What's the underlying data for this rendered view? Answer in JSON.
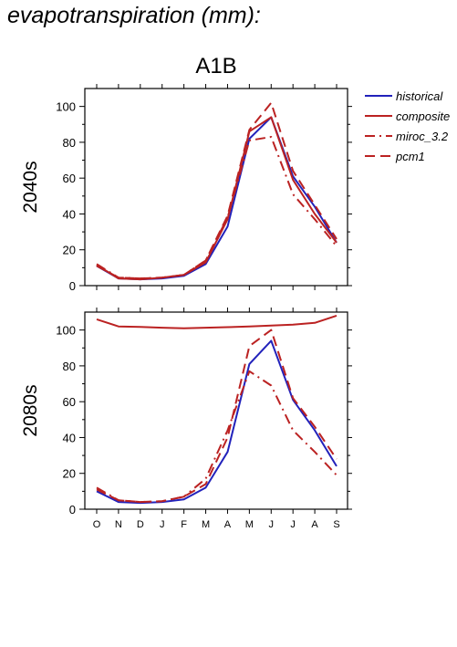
{
  "page": {
    "title": "evapotranspiration (mm):"
  },
  "colors": {
    "historical": "#2222bb",
    "future": "#bb2222"
  },
  "legend": [
    {
      "label": "historical",
      "color": "#2222bb",
      "dash": "solid"
    },
    {
      "label": "composite",
      "color": "#bb2222",
      "dash": "solid"
    },
    {
      "label": "miroc_3.2",
      "color": "#bb2222",
      "dash": "dashdot"
    },
    {
      "label": "pcm1",
      "color": "#bb2222",
      "dash": "dashed"
    }
  ],
  "chart_data": [
    {
      "type": "line",
      "title": "A1B",
      "ylabel": "2040s",
      "xlabel": "",
      "categories": [
        "O",
        "N",
        "D",
        "J",
        "F",
        "M",
        "A",
        "M",
        "J",
        "J",
        "A",
        "S"
      ],
      "ylim": [
        0,
        110
      ],
      "yticks": [
        0,
        20,
        40,
        60,
        80,
        100
      ],
      "grid": false,
      "legend": "top-right",
      "series": [
        {
          "name": "historical",
          "color": "#2222bb",
          "dash": "solid",
          "values": [
            11,
            4,
            3.5,
            4,
            5.5,
            12,
            33,
            82,
            94,
            61,
            44,
            24
          ]
        },
        {
          "name": "composite",
          "color": "#bb2222",
          "dash": "solid",
          "values": [
            11.5,
            4,
            3.5,
            4.5,
            6,
            13,
            37,
            86,
            94,
            59,
            40,
            24
          ]
        },
        {
          "name": "miroc_3.2",
          "color": "#bb2222",
          "dash": "dashdot",
          "values": [
            12,
            4.5,
            4,
            4.5,
            6,
            14,
            38,
            81,
            83,
            51,
            37,
            22
          ]
        },
        {
          "name": "pcm1",
          "color": "#bb2222",
          "dash": "dashed",
          "values": [
            11,
            4.5,
            4,
            4.5,
            6,
            14,
            39,
            87,
            102,
            64,
            45,
            26
          ]
        }
      ]
    },
    {
      "type": "line",
      "title": "",
      "ylabel": "2080s",
      "xlabel": "",
      "categories": [
        "O",
        "N",
        "D",
        "J",
        "F",
        "M",
        "A",
        "M",
        "J",
        "J",
        "A",
        "S"
      ],
      "ylim": [
        0,
        110
      ],
      "yticks": [
        0,
        20,
        40,
        60,
        80,
        100
      ],
      "grid": false,
      "legend": "none",
      "series": [
        {
          "name": "historical",
          "color": "#2222bb",
          "dash": "solid",
          "values": [
            10,
            4,
            3.5,
            4,
            5.5,
            12,
            32,
            81,
            94,
            61,
            44,
            24
          ]
        },
        {
          "name": "composite",
          "color": "#bb2222",
          "dash": "solid",
          "values": [
            106,
            102,
            101.7,
            101.3,
            101,
            101.3,
            101.6,
            102,
            102.5,
            103,
            104,
            108
          ]
        },
        {
          "name": "miroc_3.2",
          "color": "#bb2222",
          "dash": "dashdot",
          "values": [
            12,
            5,
            4,
            4.5,
            7,
            17,
            44,
            77,
            69,
            44,
            32,
            19
          ]
        },
        {
          "name": "pcm1",
          "color": "#bb2222",
          "dash": "dashed",
          "values": [
            11,
            5,
            4,
            4.5,
            7,
            14,
            40,
            91,
            100,
            62,
            46,
            28
          ]
        }
      ]
    }
  ]
}
